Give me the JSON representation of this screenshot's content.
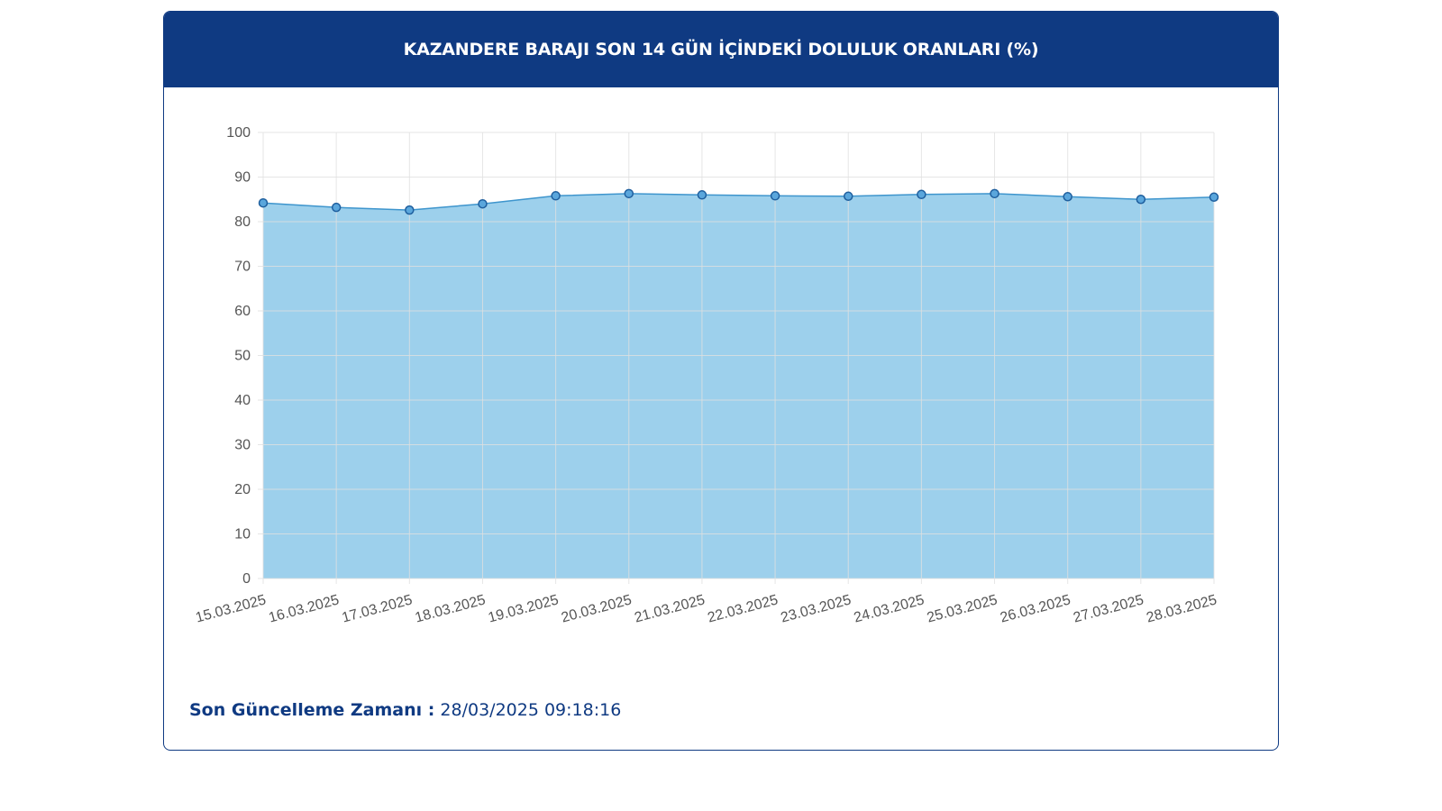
{
  "header": {
    "title": "KAZANDERE BARAJI SON 14 GÜN İÇİNDEKİ DOLULUK ORANLARI (%)"
  },
  "footer": {
    "label": "Son Güncelleme Zamanı :",
    "value": "28/03/2025 09:18:16"
  },
  "colors": {
    "header_bg": "#0f3a82",
    "area_fill": "#9dd0ec",
    "line": "#3e95cd",
    "point_fill": "#5aa6dc",
    "point_stroke": "#1f5f9e",
    "grid": "#e0e0e0"
  },
  "chart_data": {
    "type": "area",
    "title": "",
    "xlabel": "",
    "ylabel": "",
    "ylim": [
      0,
      100
    ],
    "yticks": [
      0,
      10,
      20,
      30,
      40,
      50,
      60,
      70,
      80,
      90,
      100
    ],
    "grid": true,
    "categories": [
      "15.03.2025",
      "16.03.2025",
      "17.03.2025",
      "18.03.2025",
      "19.03.2025",
      "20.03.2025",
      "21.03.2025",
      "22.03.2025",
      "23.03.2025",
      "24.03.2025",
      "25.03.2025",
      "26.03.2025",
      "27.03.2025",
      "28.03.2025"
    ],
    "series": [
      {
        "values": [
          84.2,
          83.2,
          82.6,
          84.0,
          85.8,
          86.3,
          86.0,
          85.8,
          85.7,
          86.1,
          86.3,
          85.6,
          85.0,
          85.5
        ]
      }
    ]
  }
}
